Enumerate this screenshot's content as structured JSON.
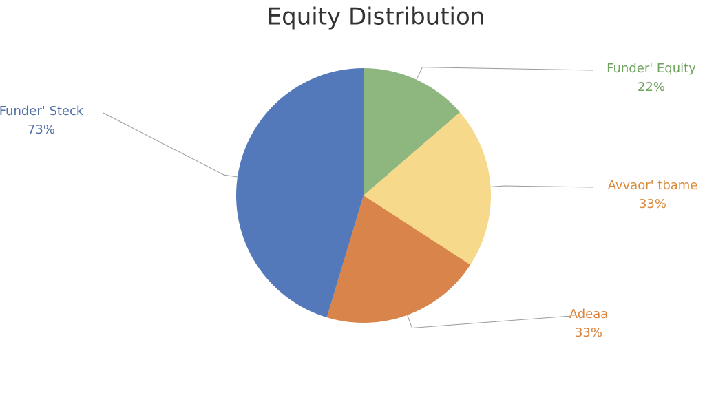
{
  "chart_data": {
    "type": "pie",
    "title": "Equity Distribution",
    "categories": [
      "Funder' Equity",
      "Avvaor' tbame",
      "Adeaa",
      "Funder' Steck"
    ],
    "values": [
      22,
      33,
      33,
      73
    ],
    "value_labels": [
      "22%",
      "33%",
      "33%",
      "73%"
    ],
    "colors": [
      "#8db77e",
      "#f7d98c",
      "#d9844a",
      "#5479bb"
    ]
  }
}
